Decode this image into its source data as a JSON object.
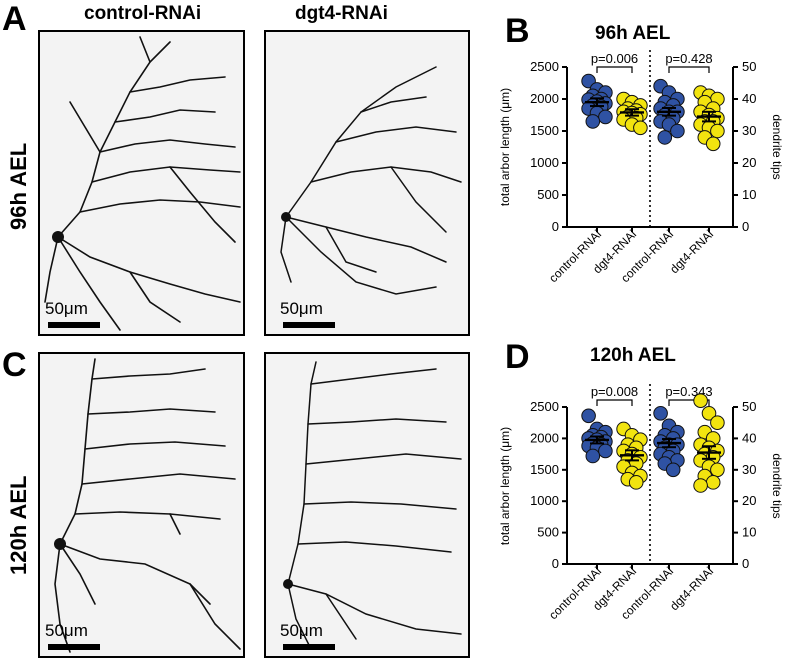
{
  "figure": {
    "panel_letters": {
      "A": "A",
      "B": "B",
      "C": "C",
      "D": "D"
    },
    "column_headers": {
      "control": "control-RNAi",
      "dgt4": "dgt4-RNAi"
    },
    "row_labels": {
      "top": "96h AEL",
      "bottom": "120h AEL"
    },
    "scale_bar_label": "50μm"
  },
  "chart_data": [
    {
      "type": "scatter",
      "title": "96h AEL",
      "categories": [
        "control-RNAi",
        "dgt4-RNAi",
        "control-RNAi",
        "dgt4-RNAi"
      ],
      "ylabel": "total arbor length (μm)",
      "y2label": "dendrite tips",
      "ylim": [
        0,
        2500
      ],
      "y2lim": [
        0,
        50
      ],
      "yticks": [
        "0",
        "500",
        "1000",
        "1500",
        "2000",
        "2500"
      ],
      "y2ticks": [
        "0",
        "10",
        "20",
        "30",
        "40",
        "50"
      ],
      "pvalues": [
        "p=0.006",
        "p=0.428"
      ],
      "colors": [
        "#2f52a3",
        "#f2e40f",
        "#2f52a3",
        "#f2e40f"
      ],
      "series": [
        {
          "axis": "left",
          "mean": 1950,
          "sem": 60,
          "values": [
            2280,
            2150,
            2100,
            2050,
            2000,
            1990,
            1960,
            1930,
            1900,
            1880,
            1850,
            1780,
            1720,
            1650
          ]
        },
        {
          "axis": "left",
          "mean": 1790,
          "sem": 50,
          "values": [
            2000,
            1950,
            1900,
            1850,
            1820,
            1800,
            1780,
            1760,
            1720,
            1700,
            1680,
            1600,
            1550
          ]
        },
        {
          "axis": "right",
          "mean": 36,
          "sem": 1.2,
          "values": [
            44,
            42,
            40,
            39,
            38,
            37,
            36,
            36,
            35,
            34,
            33,
            32,
            30,
            28
          ]
        },
        {
          "axis": "right",
          "mean": 34.5,
          "sem": 1.5,
          "values": [
            42,
            41,
            40,
            39,
            37,
            36,
            35,
            34,
            33,
            33,
            32,
            31,
            30,
            28,
            26
          ]
        }
      ]
    },
    {
      "type": "scatter",
      "title": "120h AEL",
      "categories": [
        "control-RNAi",
        "dgt4-RNAi",
        "control-RNAi",
        "dgt4-RNAi"
      ],
      "ylabel": "total arbor length (μm)",
      "y2label": "dendrite tips",
      "ylim": [
        0,
        2500
      ],
      "y2lim": [
        0,
        50
      ],
      "yticks": [
        "0",
        "500",
        "1000",
        "1500",
        "2000",
        "2500"
      ],
      "y2ticks": [
        "0",
        "10",
        "20",
        "30",
        "40",
        "50"
      ],
      "pvalues": [
        "p=0.008",
        "p=0.343"
      ],
      "colors": [
        "#2f52a3",
        "#f2e40f",
        "#2f52a3",
        "#f2e40f"
      ],
      "series": [
        {
          "axis": "left",
          "mean": 1975,
          "sem": 55,
          "values": [
            2360,
            2150,
            2100,
            2050,
            2020,
            2000,
            1980,
            1950,
            1920,
            1900,
            1880,
            1850,
            1800,
            1720
          ]
        },
        {
          "axis": "left",
          "mean": 1730,
          "sem": 80,
          "values": [
            2150,
            2050,
            1980,
            1900,
            1850,
            1800,
            1750,
            1700,
            1650,
            1600,
            1550,
            1450,
            1400,
            1350,
            1300
          ]
        },
        {
          "axis": "right",
          "mean": 38.5,
          "sem": 1.3,
          "values": [
            48,
            44,
            42,
            41,
            40,
            39,
            38,
            38,
            37,
            36,
            35,
            34,
            33,
            32,
            30
          ]
        },
        {
          "axis": "right",
          "mean": 35.5,
          "sem": 2.0,
          "values": [
            52,
            48,
            45,
            42,
            40,
            38,
            37,
            36,
            35,
            34,
            33,
            31,
            30,
            28,
            26,
            25
          ]
        }
      ]
    }
  ]
}
